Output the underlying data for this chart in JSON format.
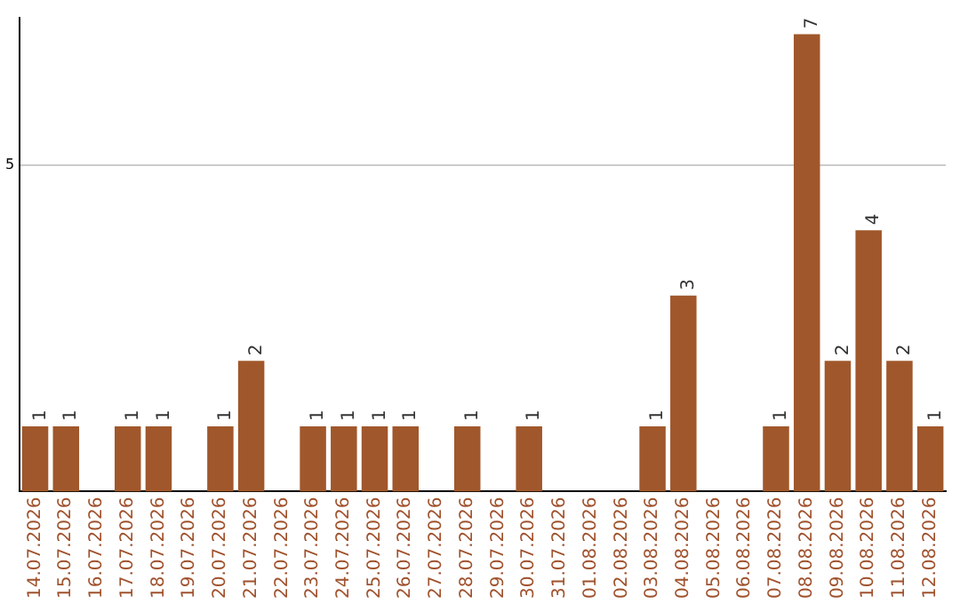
{
  "chart_data": {
    "type": "bar",
    "categories": [
      "14.07.2026",
      "15.07.2026",
      "16.07.2026",
      "17.07.2026",
      "18.07.2026",
      "19.07.2026",
      "20.07.2026",
      "21.07.2026",
      "22.07.2026",
      "23.07.2026",
      "24.07.2026",
      "25.07.2026",
      "26.07.2026",
      "27.07.2026",
      "28.07.2026",
      "29.07.2026",
      "30.07.2026",
      "31.07.2026",
      "01.08.2026",
      "02.08.2026",
      "03.08.2026",
      "04.08.2026",
      "05.08.2026",
      "06.08.2026",
      "07.08.2026",
      "08.08.2026",
      "09.08.2026",
      "10.08.2026",
      "11.08.2026",
      "12.08.2026"
    ],
    "values": [
      1,
      1,
      0,
      1,
      1,
      0,
      1,
      2,
      0,
      1,
      1,
      1,
      1,
      0,
      1,
      0,
      1,
      0,
      0,
      0,
      1,
      3,
      0,
      0,
      1,
      7,
      2,
      4,
      2,
      1
    ],
    "value_labels": [
      "1",
      "1",
      null,
      "1",
      "1",
      null,
      "1",
      "2",
      null,
      "1",
      "1",
      "1",
      "1",
      null,
      "1",
      null,
      "1",
      null,
      null,
      null,
      "1",
      "3",
      null,
      null,
      "1",
      "7",
      "2",
      "4",
      "2",
      "1"
    ],
    "color": "#a0572b",
    "ylim": [
      0,
      7.25
    ],
    "yticks": [
      5
    ],
    "grid": "y",
    "legend": false
  }
}
